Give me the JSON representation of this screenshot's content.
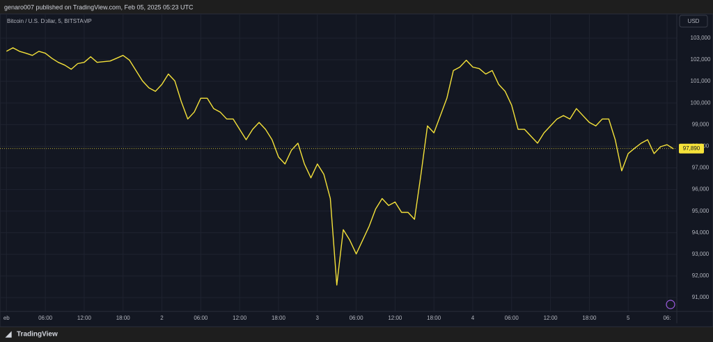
{
  "header": {
    "published": "genaro007 published on TradingView.com, Feb 05, 2025 05:23 UTC"
  },
  "footer": {
    "brand": "TradingView"
  },
  "chart_data": {
    "type": "line",
    "subtitle": "Bitcoin / U.S. Dollar, 5, BITSTAMP",
    "currency": "USD",
    "color": "#f5e23a",
    "grid": true,
    "x": [
      0,
      1,
      2,
      3,
      4,
      5,
      6,
      7,
      8,
      9,
      10,
      11,
      12,
      13,
      14,
      15,
      16,
      17,
      18,
      19,
      20,
      21,
      22,
      23,
      24,
      25,
      26,
      27,
      28,
      29,
      30,
      31,
      32,
      33,
      34,
      35,
      36,
      37,
      38,
      39,
      40,
      41,
      42,
      43,
      44,
      45,
      46,
      47,
      48,
      49,
      50,
      51,
      52,
      53,
      54,
      55,
      56,
      57,
      58,
      59,
      60,
      61,
      62,
      63,
      64,
      65,
      66,
      67,
      68,
      69,
      70,
      71,
      72,
      73,
      74,
      75,
      76,
      77,
      78,
      79,
      80,
      81,
      82,
      83,
      84,
      85,
      86,
      87,
      88,
      89,
      90,
      91,
      92,
      93,
      94,
      95,
      96,
      97,
      98,
      99,
      100,
      101,
      102,
      103
    ],
    "values": [
      102390,
      102550,
      102390,
      102300,
      102200,
      102390,
      102300,
      102070,
      101880,
      101750,
      101560,
      101820,
      101880,
      102140,
      101880,
      101910,
      101940,
      102070,
      102200,
      101980,
      101500,
      101020,
      100700,
      100540,
      100860,
      101340,
      101020,
      100060,
      99260,
      99580,
      100220,
      100220,
      99740,
      99580,
      99260,
      99260,
      98780,
      98300,
      98780,
      99100,
      98780,
      98300,
      97500,
      97180,
      97820,
      98140,
      97180,
      96540,
      97180,
      96700,
      95580,
      91580,
      94140,
      93660,
      93020,
      93660,
      94300,
      95100,
      95580,
      95260,
      95420,
      94940,
      94940,
      94620,
      96700,
      98940,
      98620,
      99420,
      100220,
      101500,
      101660,
      101980,
      101660,
      101590,
      101340,
      101500,
      100860,
      100540,
      99900,
      98780,
      98780,
      98460,
      98140,
      98620,
      98940,
      99260,
      99420,
      99260,
      99740,
      99420,
      99100,
      98940,
      99260,
      99260,
      98300,
      96860,
      97660,
      97910,
      98140,
      98300,
      97660,
      97980,
      98070,
      97880
    ],
    "xlim": [
      -1,
      103.5
    ],
    "ylim": [
      90360,
      104120
    ],
    "xticks": [
      {
        "value": 0,
        "label": "eb"
      },
      {
        "value": 6,
        "label": "06:00"
      },
      {
        "value": 12,
        "label": "12:00"
      },
      {
        "value": 18,
        "label": "18:00"
      },
      {
        "value": 24,
        "label": "2"
      },
      {
        "value": 30,
        "label": "06:00"
      },
      {
        "value": 36,
        "label": "12:00"
      },
      {
        "value": 42,
        "label": "18:00"
      },
      {
        "value": 48,
        "label": "3"
      },
      {
        "value": 54,
        "label": "06:00"
      },
      {
        "value": 60,
        "label": "12:00"
      },
      {
        "value": 66,
        "label": "18:00"
      },
      {
        "value": 72,
        "label": "4"
      },
      {
        "value": 78,
        "label": "06:00"
      },
      {
        "value": 84,
        "label": "12:00"
      },
      {
        "value": 90,
        "label": "18:00"
      },
      {
        "value": 96,
        "label": "5"
      },
      {
        "value": 102,
        "label": "06:"
      }
    ],
    "yticks": [
      {
        "value": 91000,
        "label": "91,000"
      },
      {
        "value": 92000,
        "label": "92,000"
      },
      {
        "value": 93000,
        "label": "93,000"
      },
      {
        "value": 94000,
        "label": "94,000"
      },
      {
        "value": 95000,
        "label": "95,000"
      },
      {
        "value": 96000,
        "label": "96,000"
      },
      {
        "value": 97000,
        "label": "97,000"
      },
      {
        "value": 98000,
        "label": "98,000"
      },
      {
        "value": 99000,
        "label": "99,000"
      },
      {
        "value": 100000,
        "label": "100,000"
      },
      {
        "value": 101000,
        "label": "101,000"
      },
      {
        "value": 102000,
        "label": "102,000"
      },
      {
        "value": 103000,
        "label": "103,000"
      }
    ],
    "last_price": {
      "value": 97890,
      "label": "97,890"
    }
  }
}
